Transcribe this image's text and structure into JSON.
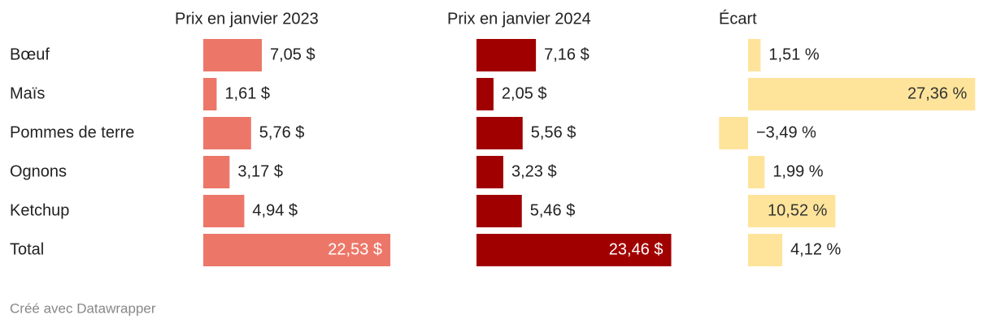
{
  "chart_data": {
    "type": "bar-table",
    "categories": [
      "Bœuf",
      "Maïs",
      "Pommes de terre",
      "Ognons",
      "Ketchup",
      "Total"
    ],
    "series": [
      {
        "name": "Prix en janvier 2023",
        "color": "#ec7769",
        "values": [
          7.05,
          1.61,
          5.76,
          3.17,
          4.94,
          22.53
        ],
        "value_labels": [
          "7,05 $",
          "1,61 $",
          "5,76 $",
          "3,17 $",
          "4,94 $",
          "22,53 $"
        ]
      },
      {
        "name": "Prix en janvier 2024",
        "color": "#a10000",
        "values": [
          7.16,
          2.05,
          5.56,
          3.23,
          5.46,
          23.46
        ],
        "value_labels": [
          "7,16 $",
          "2,05 $",
          "5,56 $",
          "3,23 $",
          "5,46 $",
          "23,46 $"
        ]
      },
      {
        "name": "Écart",
        "color": "#fee49b",
        "values": [
          1.51,
          27.36,
          -3.49,
          1.99,
          10.52,
          4.12
        ],
        "value_labels": [
          "1,51 %",
          "27,36 %",
          "−3,49 %",
          "1,99 %",
          "10,52 %",
          "4,12 %"
        ]
      }
    ],
    "footer": "Créé avec Datawrapper"
  }
}
